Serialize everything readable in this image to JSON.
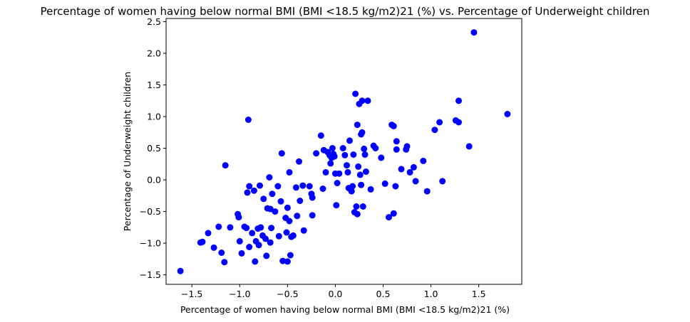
{
  "chart_data": {
    "type": "scatter",
    "title": "Percentage of women having below normal BMI (BMI <18.5 kg/m2)21 (%) vs. Percentage of Underweight children",
    "xlabel": "Percentage of women having below normal BMI (BMI <18.5 kg/m2)21 (%)",
    "ylabel": "Percentage of Underweight children",
    "xlim": [
      -1.77,
      1.95
    ],
    "ylim": [
      -1.65,
      2.55
    ],
    "xticks": [
      -1.5,
      -1.0,
      -0.5,
      0.0,
      0.5,
      1.0,
      1.5
    ],
    "xtick_labels": [
      "−1.5",
      "−1.0",
      "−0.5",
      "0.0",
      "0.5",
      "1.0",
      "1.5"
    ],
    "yticks": [
      -1.5,
      -1.0,
      -0.5,
      0.0,
      0.5,
      1.0,
      1.5,
      2.0,
      2.5
    ],
    "ytick_labels": [
      "−1.5",
      "−1.0",
      "−0.5",
      "0.0",
      "0.5",
      "1.0",
      "1.5",
      "2.0",
      "2.5"
    ],
    "grid": false,
    "marker_color": "#0000ff",
    "points": [
      {
        "x": -1.62,
        "y": -1.44
      },
      {
        "x": -1.41,
        "y": -0.99
      },
      {
        "x": -1.39,
        "y": -0.98
      },
      {
        "x": -1.33,
        "y": -0.84
      },
      {
        "x": -1.27,
        "y": -1.07
      },
      {
        "x": -1.22,
        "y": -0.74
      },
      {
        "x": -1.19,
        "y": -1.15
      },
      {
        "x": -1.16,
        "y": -1.3
      },
      {
        "x": -1.15,
        "y": 0.23
      },
      {
        "x": -1.1,
        "y": -0.75
      },
      {
        "x": -1.02,
        "y": -0.54
      },
      {
        "x": -1.01,
        "y": -0.59
      },
      {
        "x": -1.0,
        "y": -0.97
      },
      {
        "x": -0.98,
        "y": -1.16
      },
      {
        "x": -0.95,
        "y": -0.74
      },
      {
        "x": -0.93,
        "y": -0.76
      },
      {
        "x": -0.92,
        "y": -0.2
      },
      {
        "x": -0.91,
        "y": 0.95
      },
      {
        "x": -0.9,
        "y": -0.1
      },
      {
        "x": -0.9,
        "y": -1.06
      },
      {
        "x": -0.87,
        "y": -0.84
      },
      {
        "x": -0.85,
        "y": -0.17
      },
      {
        "x": -0.84,
        "y": -1.29
      },
      {
        "x": -0.83,
        "y": -0.97
      },
      {
        "x": -0.81,
        "y": -0.77
      },
      {
        "x": -0.8,
        "y": -1.03
      },
      {
        "x": -0.79,
        "y": -0.09
      },
      {
        "x": -0.78,
        "y": -0.75
      },
      {
        "x": -0.76,
        "y": -0.88
      },
      {
        "x": -0.75,
        "y": -0.3
      },
      {
        "x": -0.73,
        "y": -0.93
      },
      {
        "x": -0.72,
        "y": -1.2
      },
      {
        "x": -0.71,
        "y": -0.45
      },
      {
        "x": -0.69,
        "y": 0.04
      },
      {
        "x": -0.68,
        "y": -0.46
      },
      {
        "x": -0.68,
        "y": -0.99
      },
      {
        "x": -0.67,
        "y": -0.76
      },
      {
        "x": -0.66,
        "y": -0.22
      },
      {
        "x": -0.63,
        "y": -0.5
      },
      {
        "x": -0.6,
        "y": -0.1
      },
      {
        "x": -0.59,
        "y": -0.89
      },
      {
        "x": -0.57,
        "y": -0.34
      },
      {
        "x": -0.56,
        "y": 0.42
      },
      {
        "x": -0.55,
        "y": -1.28
      },
      {
        "x": -0.52,
        "y": -0.6
      },
      {
        "x": -0.51,
        "y": -0.83
      },
      {
        "x": -0.5,
        "y": -0.44
      },
      {
        "x": -0.5,
        "y": -1.29
      },
      {
        "x": -0.48,
        "y": 0.12
      },
      {
        "x": -0.48,
        "y": -0.65
      },
      {
        "x": -0.47,
        "y": -1.19
      },
      {
        "x": -0.46,
        "y": -0.9
      },
      {
        "x": -0.44,
        "y": -0.88
      },
      {
        "x": -0.41,
        "y": -0.12
      },
      {
        "x": -0.4,
        "y": -0.57
      },
      {
        "x": -0.38,
        "y": 0.29
      },
      {
        "x": -0.37,
        "y": -0.33
      },
      {
        "x": -0.34,
        "y": -0.09
      },
      {
        "x": -0.33,
        "y": -0.8
      },
      {
        "x": -0.27,
        "y": -0.1
      },
      {
        "x": -0.25,
        "y": -0.22
      },
      {
        "x": -0.24,
        "y": -0.56
      },
      {
        "x": -0.24,
        "y": -0.28
      },
      {
        "x": -0.2,
        "y": 0.42
      },
      {
        "x": -0.15,
        "y": 0.7
      },
      {
        "x": -0.13,
        "y": -0.14
      },
      {
        "x": -0.12,
        "y": 0.47
      },
      {
        "x": -0.1,
        "y": 0.12
      },
      {
        "x": -0.08,
        "y": 0.44
      },
      {
        "x": -0.06,
        "y": 0.39
      },
      {
        "x": -0.05,
        "y": 0.26
      },
      {
        "x": -0.04,
        "y": 0.35
      },
      {
        "x": -0.03,
        "y": 0.5
      },
      {
        "x": -0.02,
        "y": 0.41
      },
      {
        "x": -0.01,
        "y": 0.37
      },
      {
        "x": 0.0,
        "y": 0.1
      },
      {
        "x": 0.01,
        "y": -0.4
      },
      {
        "x": 0.02,
        "y": -0.05
      },
      {
        "x": 0.04,
        "y": 0.1
      },
      {
        "x": 0.08,
        "y": 0.5
      },
      {
        "x": 0.1,
        "y": 0.39
      },
      {
        "x": 0.12,
        "y": 0.23
      },
      {
        "x": 0.13,
        "y": 0.12
      },
      {
        "x": 0.14,
        "y": -0.13
      },
      {
        "x": 0.15,
        "y": 0.62
      },
      {
        "x": 0.16,
        "y": -0.15
      },
      {
        "x": 0.17,
        "y": -0.18
      },
      {
        "x": 0.18,
        "y": -0.1
      },
      {
        "x": 0.19,
        "y": 0.4
      },
      {
        "x": 0.2,
        "y": -0.51
      },
      {
        "x": 0.21,
        "y": 1.36
      },
      {
        "x": 0.22,
        "y": -0.42
      },
      {
        "x": 0.23,
        "y": -0.54
      },
      {
        "x": 0.23,
        "y": 0.87
      },
      {
        "x": 0.24,
        "y": 0.21
      },
      {
        "x": 0.25,
        "y": 1.2
      },
      {
        "x": 0.26,
        "y": 0.08
      },
      {
        "x": 0.27,
        "y": -0.08
      },
      {
        "x": 0.27,
        "y": 0.72
      },
      {
        "x": 0.28,
        "y": 0.75
      },
      {
        "x": 0.28,
        "y": 1.25
      },
      {
        "x": 0.29,
        "y": -0.42
      },
      {
        "x": 0.3,
        "y": 0.49
      },
      {
        "x": 0.31,
        "y": 0.4
      },
      {
        "x": 0.32,
        "y": 0.13
      },
      {
        "x": 0.34,
        "y": 1.25
      },
      {
        "x": 0.37,
        "y": -0.15
      },
      {
        "x": 0.4,
        "y": 0.54
      },
      {
        "x": 0.42,
        "y": 0.5
      },
      {
        "x": 0.48,
        "y": 0.35
      },
      {
        "x": 0.52,
        "y": -0.06
      },
      {
        "x": 0.56,
        "y": -0.59
      },
      {
        "x": 0.59,
        "y": 0.87
      },
      {
        "x": 0.61,
        "y": 0.85
      },
      {
        "x": 0.61,
        "y": -0.53
      },
      {
        "x": 0.63,
        "y": -0.1
      },
      {
        "x": 0.64,
        "y": 0.48
      },
      {
        "x": 0.64,
        "y": 0.61
      },
      {
        "x": 0.69,
        "y": 0.17
      },
      {
        "x": 0.74,
        "y": 0.48
      },
      {
        "x": 0.75,
        "y": 0.53
      },
      {
        "x": 0.78,
        "y": 0.12
      },
      {
        "x": 0.82,
        "y": 0.2
      },
      {
        "x": 0.84,
        "y": -0.02
      },
      {
        "x": 0.92,
        "y": 0.3
      },
      {
        "x": 0.96,
        "y": -0.18
      },
      {
        "x": 1.04,
        "y": 0.79
      },
      {
        "x": 1.09,
        "y": 0.91
      },
      {
        "x": 1.12,
        "y": -0.02
      },
      {
        "x": 1.26,
        "y": 0.94
      },
      {
        "x": 1.29,
        "y": 1.25
      },
      {
        "x": 1.29,
        "y": 0.91
      },
      {
        "x": 1.4,
        "y": 0.53
      },
      {
        "x": 1.45,
        "y": 2.33
      },
      {
        "x": 1.8,
        "y": 1.04
      }
    ]
  }
}
